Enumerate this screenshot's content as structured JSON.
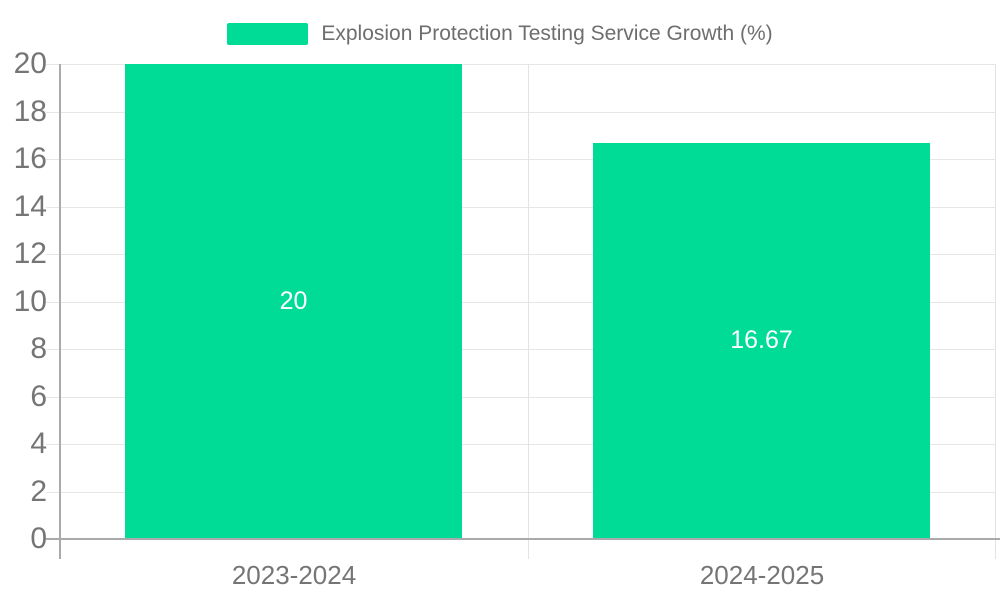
{
  "chart_data": {
    "type": "bar",
    "title": "",
    "categories": [
      "2023-2024",
      "2024-2025"
    ],
    "series": [
      {
        "name": "Explosion Protection Testing Service Growth (%)",
        "values": [
          20,
          16.67
        ],
        "color": "#00DC96"
      }
    ],
    "value_labels": [
      "20",
      "16.67"
    ],
    "ylim": [
      0,
      20
    ],
    "yticks": [
      0,
      2,
      4,
      6,
      8,
      10,
      12,
      14,
      16,
      18,
      20
    ],
    "xlabel": "",
    "ylabel": "",
    "grid": true,
    "legend_position": "top-center"
  },
  "legend": {
    "label": "Explosion Protection Testing Service Growth (%)"
  },
  "colors": {
    "bar": "#00DC96",
    "axis_line": "#aaaaaa",
    "gridline": "#e6e6e6",
    "split_line": "#e3e3e3",
    "axis_label": "#757575",
    "legend_text": "#6e6e6e",
    "bar_label": "#ffffff",
    "background": "#ffffff"
  }
}
